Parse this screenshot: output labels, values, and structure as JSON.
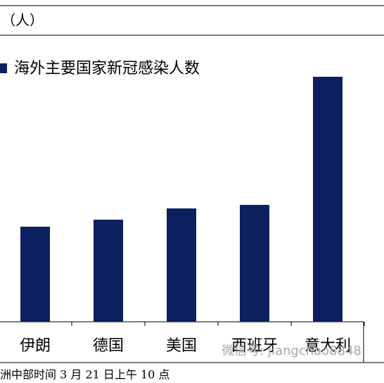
{
  "chart_data": {
    "type": "bar",
    "unit_label": "（人）",
    "series": [
      {
        "name": "海外主要国家新冠感染人数",
        "color": "#0c1f5e",
        "values": [
          18240,
          19590,
          21750,
          22430,
          47021
        ]
      }
    ],
    "categories": [
      "伊朗",
      "德国",
      "美国",
      "西班牙",
      "意大利"
    ],
    "ylim": [
      0,
      60000
    ],
    "note": "洲中部时间 3 月 21 日上午 10 点",
    "watermark": "微信号: jiangchao8848"
  }
}
